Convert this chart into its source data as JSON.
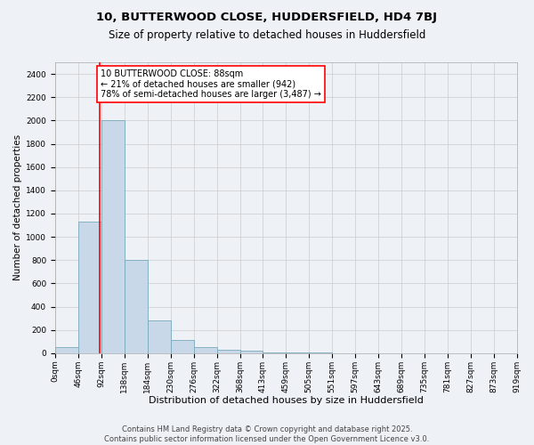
{
  "title": "10, BUTTERWOOD CLOSE, HUDDERSFIELD, HD4 7BJ",
  "subtitle": "Size of property relative to detached houses in Huddersfield",
  "xlabel": "Distribution of detached houses by size in Huddersfield",
  "ylabel": "Number of detached properties",
  "bin_edges": [
    0,
    46,
    92,
    138,
    184,
    230,
    276,
    322,
    368,
    413,
    459,
    505,
    551,
    597,
    643,
    689,
    735,
    781,
    827,
    873,
    919
  ],
  "bar_heights": [
    50,
    1130,
    2000,
    800,
    280,
    110,
    50,
    30,
    20,
    10,
    5,
    3,
    2,
    2,
    1,
    1,
    1,
    0,
    0,
    0
  ],
  "bar_color": "#c8d8e8",
  "bar_edge_color": "#7aaabb",
  "property_size": 88,
  "property_line_color": "red",
  "annotation_text": "10 BUTTERWOOD CLOSE: 88sqm\n← 21% of detached houses are smaller (942)\n78% of semi-detached houses are larger (3,487) →",
  "annotation_box_color": "white",
  "annotation_box_edge_color": "red",
  "ylim": [
    0,
    2500
  ],
  "yticks": [
    0,
    200,
    400,
    600,
    800,
    1000,
    1200,
    1400,
    1600,
    1800,
    2000,
    2200,
    2400
  ],
  "grid_color": "#cccccc",
  "background_color": "#eef2f7",
  "footer_line1": "Contains HM Land Registry data © Crown copyright and database right 2025.",
  "footer_line2": "Contains public sector information licensed under the Open Government Licence v3.0.",
  "title_fontsize": 9.5,
  "subtitle_fontsize": 8.5,
  "xlabel_fontsize": 8,
  "ylabel_fontsize": 7.5,
  "tick_fontsize": 6.5,
  "annotation_fontsize": 7,
  "footer_fontsize": 6
}
